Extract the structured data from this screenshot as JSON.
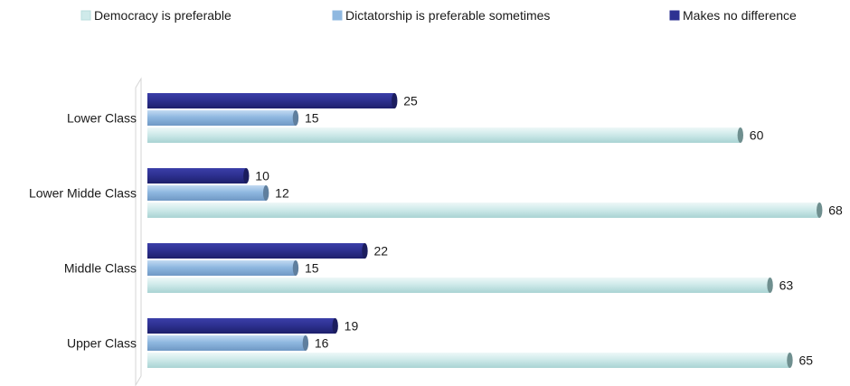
{
  "chart_data": {
    "type": "bar",
    "orientation": "horizontal",
    "categories": [
      "Lower Class",
      "Lower Midde Class",
      "Middle Class",
      "Upper Class"
    ],
    "series": [
      {
        "name": "Makes no difference",
        "values": [
          25,
          10,
          22,
          19
        ],
        "color": "#2e3192"
      },
      {
        "name": "Dictatorship is preferable sometimes",
        "values": [
          15,
          12,
          15,
          16
        ],
        "color": "#8fb8e0"
      },
      {
        "name": "Democracy is preferable",
        "values": [
          60,
          68,
          63,
          65
        ],
        "color": "#cfeaea"
      }
    ],
    "legend": {
      "position": "top",
      "order": [
        "Democracy is preferable",
        "Dictatorship is preferable sometimes",
        "Makes no difference"
      ]
    },
    "xlim": [
      0,
      70
    ],
    "grid": false,
    "data_labels": true
  }
}
